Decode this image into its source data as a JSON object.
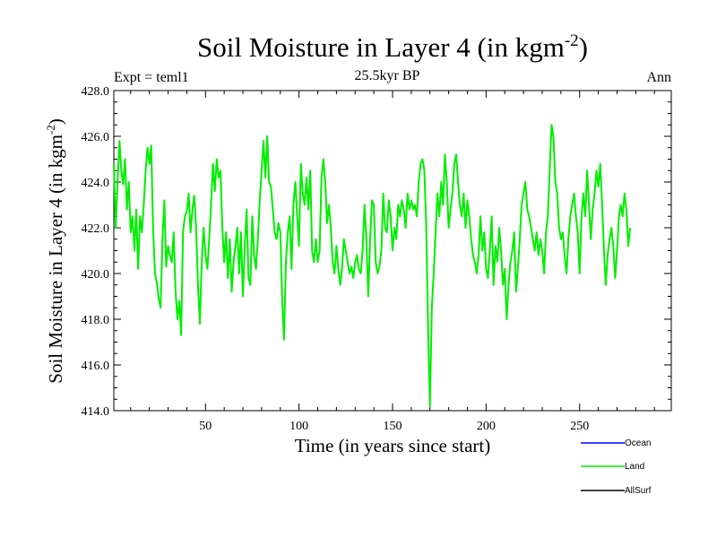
{
  "chart_data": {
    "type": "line",
    "title_main": "Soil Moisture in Layer 4 (in kgm",
    "title_sup": "-2",
    "title_close": ")",
    "subtitle": "25.5kyr BP",
    "left_label": "Expt = teml1",
    "right_label": "Ann",
    "xlabel": "Time (in years since start)",
    "ylabel_main": "Soil Moisture in Layer 4 (in kgm",
    "ylabel_sup": "-2",
    "ylabel_close": ")",
    "xlim": [
      1,
      299
    ],
    "ylim": [
      414.0,
      428.0
    ],
    "x_ticks": [
      50,
      100,
      150,
      200,
      250
    ],
    "x_tick_labels": [
      "50",
      "100",
      "150",
      "200",
      "250"
    ],
    "y_ticks": [
      414,
      416,
      418,
      420,
      422,
      424,
      426,
      428
    ],
    "y_tick_labels": [
      "414.0",
      "416.0",
      "418.0",
      "420.0",
      "422.0",
      "424.0",
      "426.0",
      "428.0"
    ],
    "legend": [
      {
        "name": "Ocean",
        "color": "#0000ff"
      },
      {
        "name": "Land",
        "color": "#00ee00"
      },
      {
        "name": "AllSurf",
        "color": "#000000"
      }
    ],
    "series": [
      {
        "name": "Land",
        "color": "#00ee00",
        "x_start": 1,
        "x_step": 1,
        "values": [
          424.8,
          422.0,
          424.0,
          425.8,
          424.5,
          423.9,
          425.0,
          422.8,
          424.0,
          421.8,
          422.5,
          421.0,
          422.8,
          420.2,
          422.5,
          421.8,
          423.0,
          424.5,
          425.5,
          424.8,
          425.6,
          422.0,
          420.0,
          419.6,
          418.9,
          418.5,
          421.5,
          423.2,
          420.3,
          421.2,
          420.8,
          420.5,
          421.8,
          419.2,
          418.0,
          418.8,
          417.3,
          421.8,
          422.5,
          422.7,
          423.5,
          421.8,
          422.8,
          423.4,
          422.0,
          419.5,
          417.8,
          420.5,
          422.0,
          420.8,
          420.2,
          421.5,
          423.0,
          424.8,
          423.6,
          425.0,
          424.2,
          424.5,
          422.0,
          420.5,
          421.8,
          419.8,
          421.5,
          419.2,
          420.5,
          421.2,
          422.0,
          420.0,
          421.8,
          419.0,
          421.2,
          422.8,
          419.8,
          419.5,
          422.5,
          420.8,
          420.2,
          421.5,
          423.2,
          424.5,
          425.8,
          424.2,
          426.0,
          424.0,
          423.8,
          422.8,
          421.8,
          421.5,
          422.2,
          421.8,
          418.8,
          417.1,
          420.5,
          421.8,
          422.5,
          420.2,
          423.0,
          424.0,
          422.5,
          421.2,
          424.8,
          423.5,
          423.0,
          424.2,
          422.8,
          424.5,
          421.0,
          420.5,
          421.5,
          420.5,
          421.0,
          424.2,
          425.0,
          424.0,
          422.2,
          423.0,
          422.0,
          420.5,
          420.0,
          421.2,
          420.2,
          419.5,
          420.2,
          421.5,
          421.0,
          420.5,
          420.0,
          420.3,
          419.8,
          420.5,
          420.8,
          420.2,
          420.0,
          421.0,
          423.0,
          421.5,
          419.0,
          421.5,
          423.2,
          423.0,
          420.5,
          420.0,
          420.3,
          421.0,
          423.5,
          422.0,
          421.8,
          423.2,
          422.5,
          421.0,
          422.0,
          421.5,
          423.0,
          422.5,
          423.2,
          422.8,
          422.0,
          423.5,
          422.8,
          423.2,
          422.8,
          423.0,
          422.5,
          424.0,
          424.8,
          425.0,
          424.5,
          422.0,
          417.5,
          414.2,
          418.5,
          420.0,
          421.8,
          423.5,
          422.5,
          424.0,
          423.0,
          425.2,
          424.0,
          422.0,
          422.8,
          423.5,
          424.8,
          425.2,
          424.0,
          423.0,
          422.5,
          423.5,
          422.0,
          423.2,
          422.5,
          421.5,
          420.8,
          420.5,
          420.0,
          420.8,
          422.5,
          421.0,
          421.8,
          420.2,
          419.8,
          421.0,
          422.5,
          419.5,
          421.2,
          420.5,
          422.0,
          421.0,
          419.5,
          420.2,
          418.0,
          419.5,
          420.5,
          421.0,
          421.8,
          419.2,
          420.2,
          421.5,
          423.0,
          423.5,
          424.0,
          422.8,
          422.5,
          422.0,
          421.5,
          421.0,
          421.8,
          420.8,
          421.5,
          421.0,
          420.0,
          421.8,
          422.5,
          424.5,
          426.5,
          426.0,
          424.0,
          423.5,
          422.0,
          421.5,
          421.8,
          420.8,
          420.0,
          421.5,
          422.5,
          423.0,
          423.5,
          422.5,
          421.8,
          420.0,
          422.5,
          423.5,
          422.5,
          424.5,
          423.0,
          421.5,
          422.8,
          423.5,
          424.5,
          423.8,
          424.8,
          423.0,
          421.0,
          419.5,
          420.8,
          421.5,
          422.0,
          421.2,
          419.8,
          421.0,
          422.5,
          423.0,
          422.5,
          423.5,
          422.8,
          421.2,
          422.0
        ]
      }
    ]
  }
}
